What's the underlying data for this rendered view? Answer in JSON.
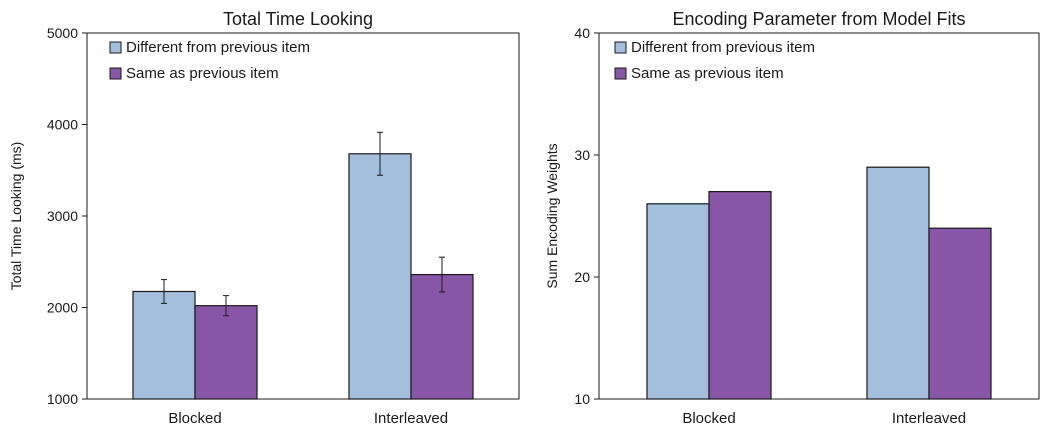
{
  "chart_data": [
    {
      "type": "bar",
      "title": "Total Time Looking",
      "xlabel": "",
      "ylabel": "Total Time Looking (ms)",
      "categories": [
        "Blocked",
        "Interleaved"
      ],
      "ylim": [
        1000,
        5000
      ],
      "yticks": [
        1000,
        2000,
        3000,
        4000,
        5000
      ],
      "grid": false,
      "legend_position": "top-left",
      "series": [
        {
          "name": "Different from previous item",
          "color": "#a3bfdc",
          "values": [
            2175,
            3680
          ],
          "errors": [
            130,
            235
          ]
        },
        {
          "name": "Same as previous item",
          "color": "#8856a7",
          "values": [
            2020,
            2360
          ],
          "errors": [
            110,
            190
          ]
        }
      ]
    },
    {
      "type": "bar",
      "title": "Encoding Parameter from Model Fits",
      "xlabel": "",
      "ylabel": "Sum Encoding Weights",
      "categories": [
        "Blocked",
        "Interleaved"
      ],
      "ylim": [
        10,
        40
      ],
      "yticks": [
        10,
        20,
        30,
        40
      ],
      "grid": false,
      "legend_position": "top-left",
      "series": [
        {
          "name": "Different from previous item",
          "color": "#a3bfdc",
          "values": [
            26,
            29
          ]
        },
        {
          "name": "Same as previous item",
          "color": "#8856a7",
          "values": [
            27,
            24
          ]
        }
      ]
    }
  ]
}
